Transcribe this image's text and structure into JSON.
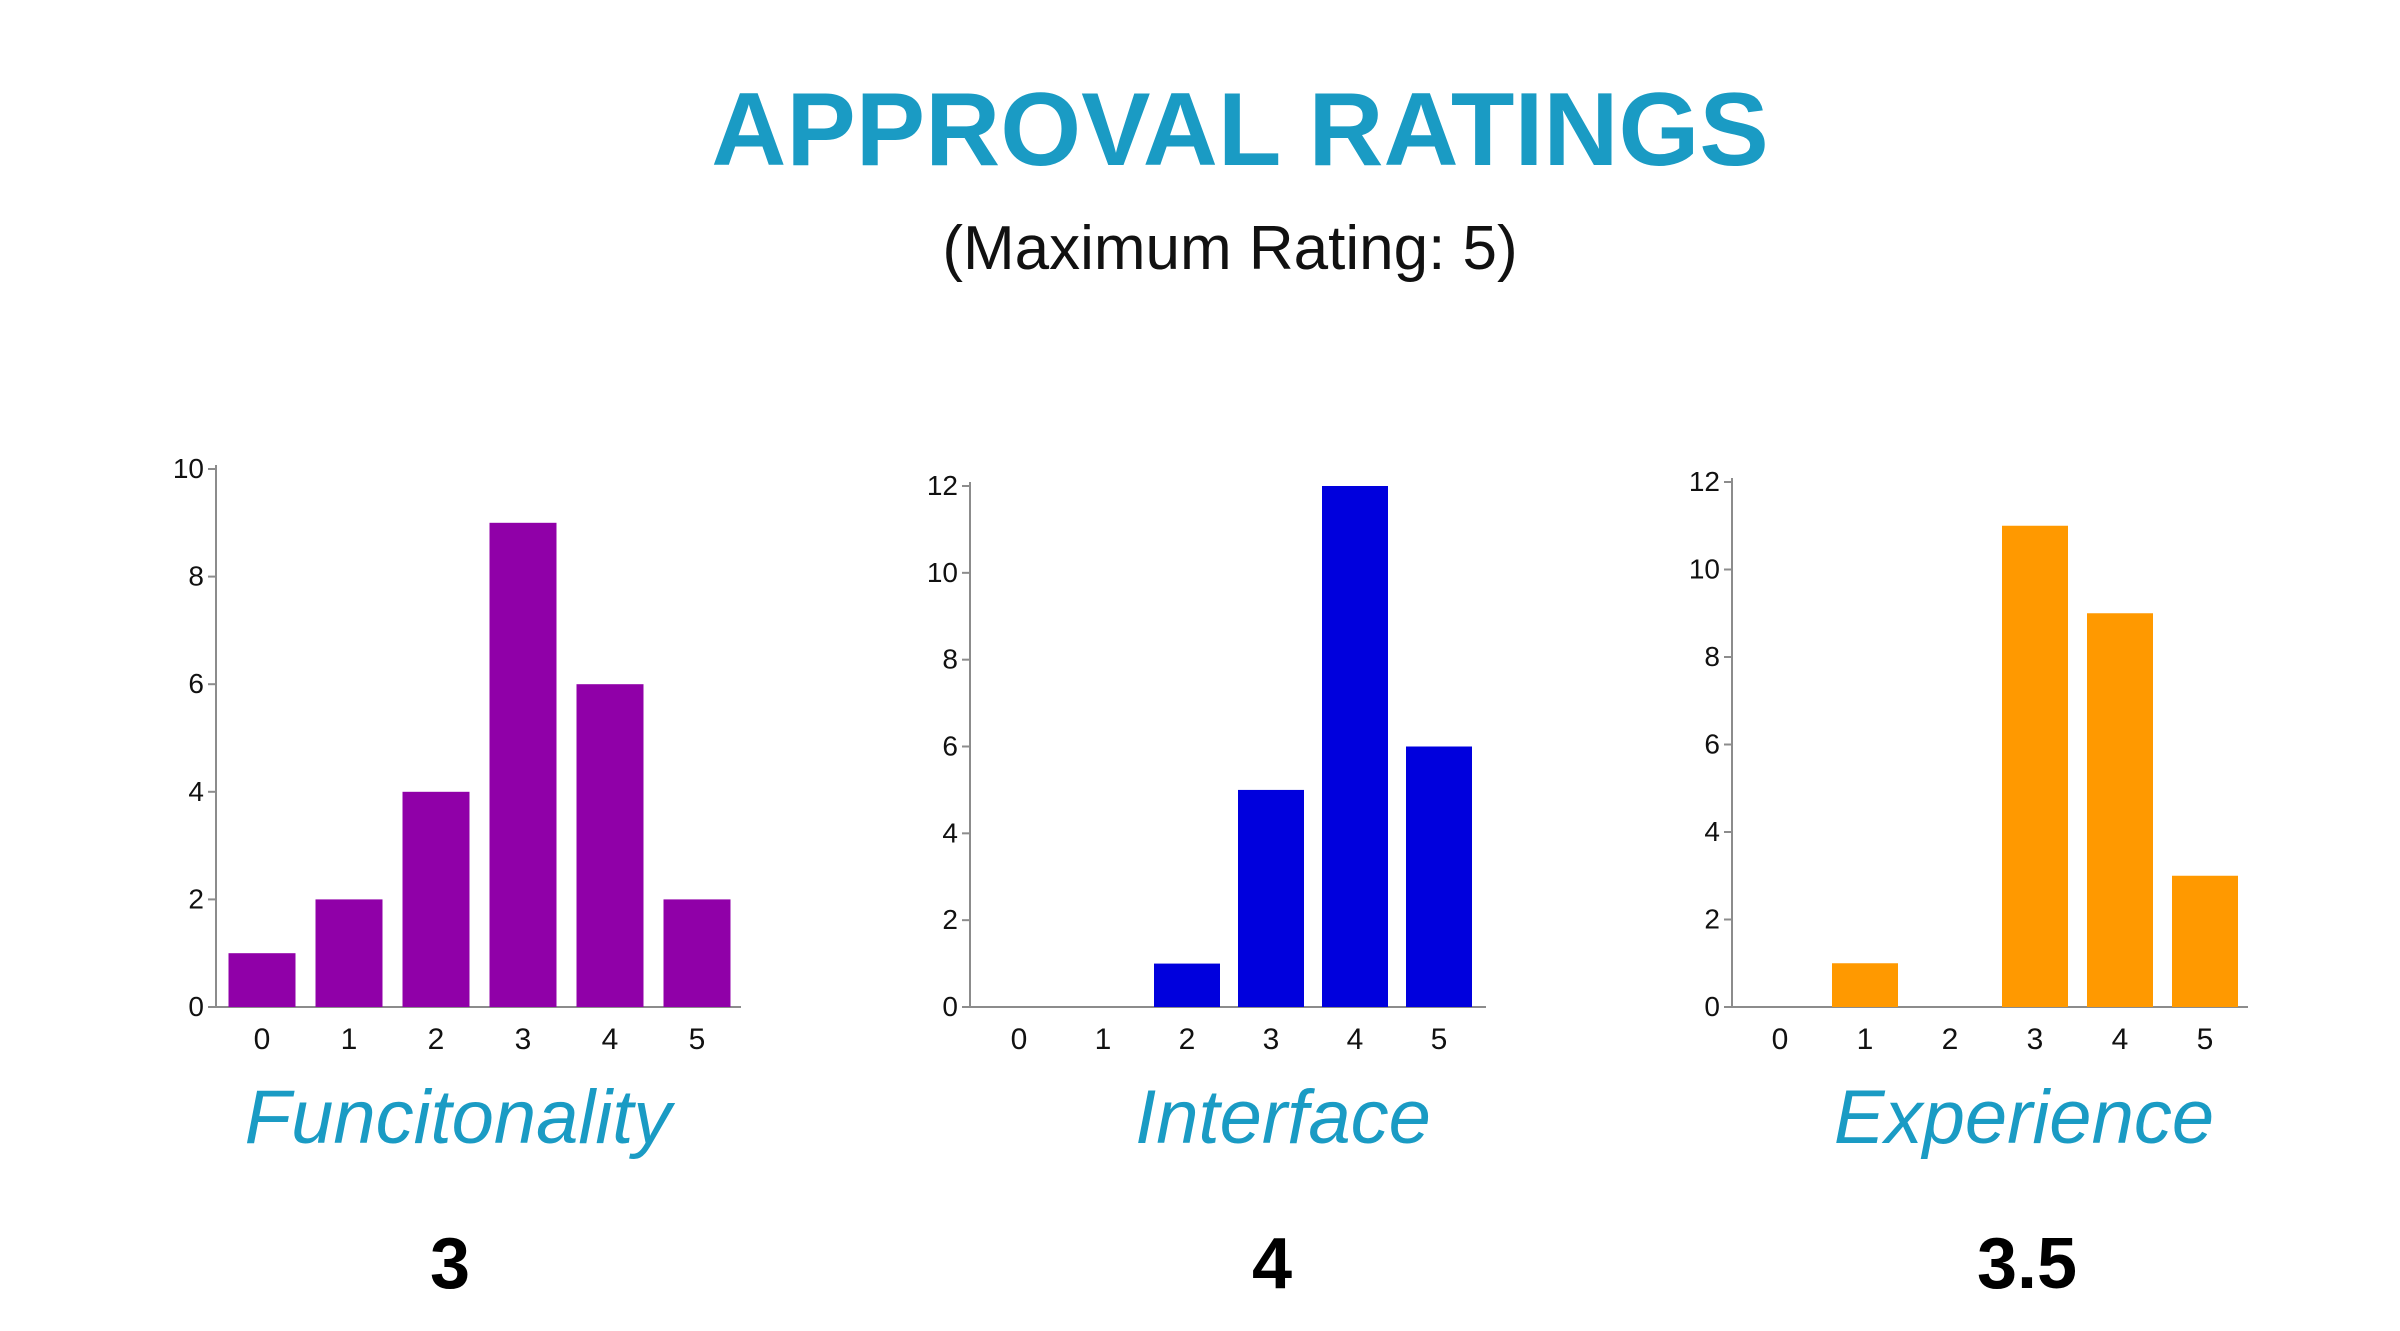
{
  "header": {
    "title": "APPROVAL RATINGS",
    "subtitle": "(Maximum Rating: 5)"
  },
  "colors": {
    "title": "#1a9bc4",
    "axis": "#8c8c8c"
  },
  "panels": [
    {
      "label": "Funcitonality",
      "score": "3"
    },
    {
      "label": "Interface",
      "score": "4"
    },
    {
      "label": "Experience",
      "score": "3.5"
    }
  ],
  "chart_data": [
    {
      "type": "bar",
      "categories": [
        "0",
        "1",
        "2",
        "3",
        "4",
        "5"
      ],
      "values": [
        1,
        2,
        4,
        9,
        6,
        2
      ],
      "ylim": [
        0,
        10
      ],
      "yticks": [
        0,
        2,
        4,
        6,
        8,
        10
      ],
      "color": "#9000a8",
      "xlabel": "",
      "ylabel": "",
      "grid": false
    },
    {
      "type": "bar",
      "categories": [
        "0",
        "1",
        "2",
        "3",
        "4",
        "5"
      ],
      "values": [
        0,
        0,
        1,
        5,
        12,
        6
      ],
      "ylim": [
        0,
        12
      ],
      "yticks": [
        0,
        2,
        4,
        6,
        8,
        10,
        12
      ],
      "color": "#0000dd",
      "xlabel": "",
      "ylabel": "",
      "grid": false
    },
    {
      "type": "bar",
      "categories": [
        "0",
        "1",
        "2",
        "3",
        "4",
        "5"
      ],
      "values": [
        0,
        1,
        0,
        11,
        9,
        3
      ],
      "ylim": [
        0,
        12
      ],
      "yticks": [
        0,
        2,
        4,
        6,
        8,
        10,
        12
      ],
      "color": "#ff9900",
      "xlabel": "",
      "ylabel": "",
      "grid": false
    }
  ]
}
